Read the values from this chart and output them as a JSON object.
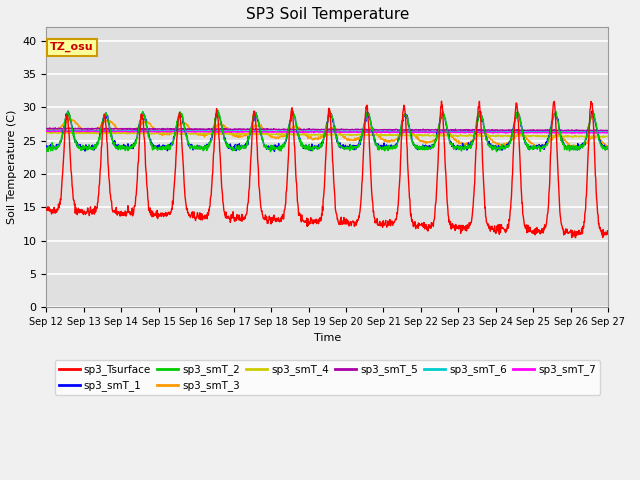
{
  "title": "SP3 Soil Temperature",
  "ylabel": "Soil Temperature (C)",
  "xlabel": "Time",
  "ylim": [
    0,
    42
  ],
  "yticks": [
    0,
    5,
    10,
    15,
    20,
    25,
    30,
    35,
    40
  ],
  "xstart_day": 12,
  "xend_day": 27,
  "series_colors": {
    "sp3_Tsurface": "#FF0000",
    "sp3_smT_1": "#0000FF",
    "sp3_smT_2": "#00CC00",
    "sp3_smT_3": "#FF9900",
    "sp3_smT_4": "#CCCC00",
    "sp3_smT_5": "#AA00AA",
    "sp3_smT_6": "#00CCCC",
    "sp3_smT_7": "#FF00FF"
  },
  "legend_label_color": "#CC0000",
  "annotation_text": "TZ_osu",
  "annotation_bg": "#FFFF99",
  "annotation_border": "#CC9900",
  "background_color": "#E0E0E0",
  "fig_background": "#F0F0F0",
  "grid_color": "#FFFFFF",
  "n_points": 1440
}
